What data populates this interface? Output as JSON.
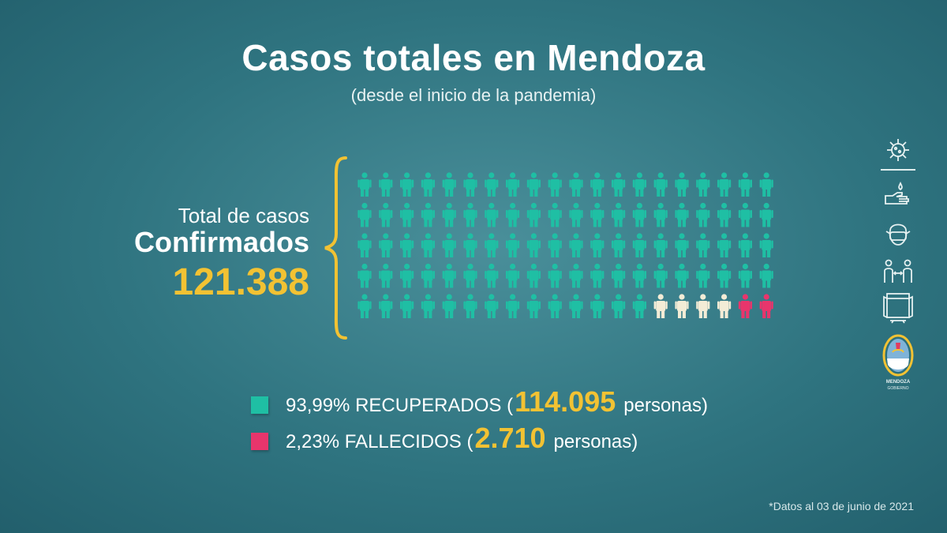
{
  "header": {
    "title": "Casos totales en Mendoza",
    "subtitle": "(desde el inicio de la pandemia)"
  },
  "total": {
    "label": "Total de casos",
    "kind": "Confirmados",
    "number": "121.388"
  },
  "pictogram": {
    "rows": 5,
    "columns": 20,
    "recovered_count": 94,
    "active_count": 4,
    "deceased_count": 2
  },
  "legend": {
    "recovered": {
      "prefix": "93,99% RECUPERADOS (",
      "number": "114.095",
      "suffix": "personas)"
    },
    "deceased": {
      "prefix": "2,23% FALLECIDOS (",
      "number": "2.710",
      "suffix": "personas)"
    }
  },
  "footnote": "*Datos al 03 de junio de 2021",
  "colors": {
    "recovered": "#1fbfa4",
    "active": "#f3ecd6",
    "deceased": "#e8356c",
    "accent": "#f2c233"
  },
  "side_icons": [
    "virus-icon",
    "hand-washing-icon",
    "face-mask-icon",
    "social-distance-icon",
    "window-ventilation-icon",
    "mendoza-shield-logo"
  ],
  "logo_text": [
    "MENDOZA",
    "GOBIERNO"
  ]
}
